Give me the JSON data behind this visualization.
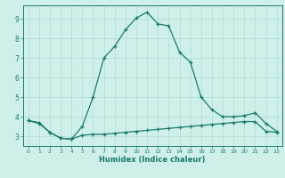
{
  "xlabel": "Humidex (Indice chaleur)",
  "background_color": "#cff0ea",
  "grid_color": "#aeddd7",
  "line_color": "#1a7a6e",
  "xlim": [
    -0.5,
    23.5
  ],
  "ylim": [
    2.5,
    9.7
  ],
  "yticks": [
    3,
    4,
    5,
    6,
    7,
    8,
    9
  ],
  "xticks": [
    0,
    1,
    2,
    3,
    4,
    5,
    6,
    7,
    8,
    9,
    10,
    11,
    12,
    13,
    14,
    15,
    16,
    17,
    18,
    19,
    20,
    21,
    22,
    23
  ],
  "series1_x": [
    0,
    1,
    2,
    3,
    4,
    5,
    6,
    7,
    8,
    9,
    10,
    11,
    12,
    13,
    14,
    15,
    16,
    17,
    18,
    19,
    20,
    21,
    22,
    23
  ],
  "series1_y": [
    3.8,
    3.7,
    3.2,
    2.9,
    2.85,
    3.5,
    5.0,
    7.0,
    7.6,
    8.45,
    9.05,
    9.35,
    8.75,
    8.65,
    7.3,
    6.8,
    5.0,
    4.35,
    4.0,
    4.0,
    4.05,
    4.2,
    3.65,
    3.25
  ],
  "series2_x": [
    0,
    1,
    2,
    3,
    4,
    5,
    6,
    7,
    8,
    9,
    10,
    11,
    12,
    13,
    14,
    15,
    16,
    17,
    18,
    19,
    20,
    21,
    22,
    23
  ],
  "series2_y": [
    3.8,
    3.65,
    3.2,
    2.9,
    2.85,
    3.05,
    3.1,
    3.1,
    3.15,
    3.2,
    3.25,
    3.3,
    3.35,
    3.4,
    3.45,
    3.5,
    3.55,
    3.6,
    3.65,
    3.7,
    3.75,
    3.75,
    3.25,
    3.2
  ]
}
